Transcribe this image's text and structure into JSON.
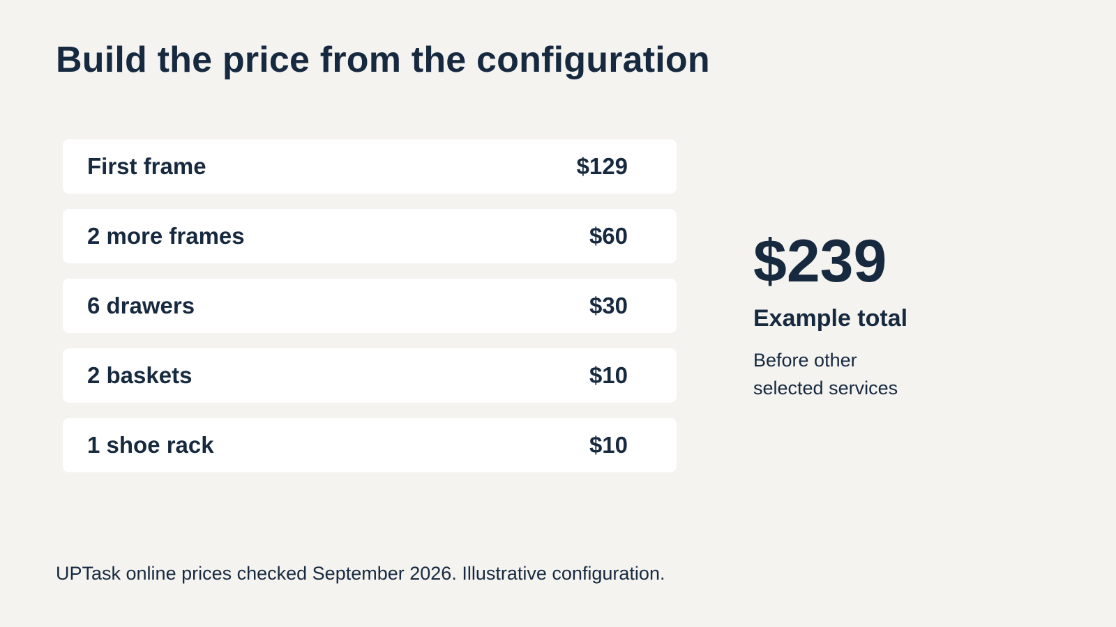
{
  "title": "Build the price from the configuration",
  "line_items": [
    {
      "label": "First frame",
      "price": "$129"
    },
    {
      "label": "2 more frames",
      "price": "$60"
    },
    {
      "label": "6 drawers",
      "price": "$30"
    },
    {
      "label": "2 baskets",
      "price": "$10"
    },
    {
      "label": "1 shoe rack",
      "price": "$10"
    }
  ],
  "summary": {
    "total": "$239",
    "label": "Example total",
    "note": "Before other selected services"
  },
  "footnote": "UPTask online prices checked September 2026. Illustrative configuration."
}
